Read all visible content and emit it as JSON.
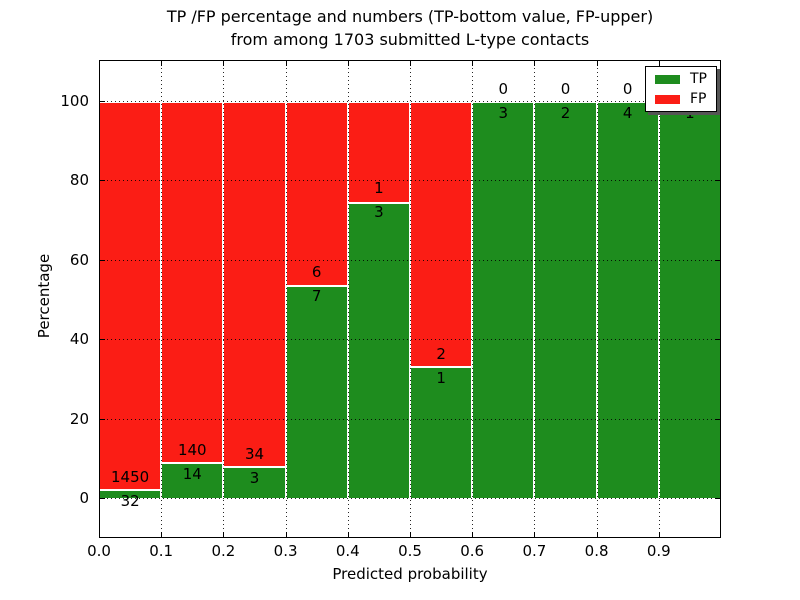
{
  "title_lines": {
    "line1": "TP /FP percentage and numbers (TP-bottom value, FP-upper)",
    "line2": "from among 1703 submitted L-type contacts"
  },
  "chart_data": {
    "type": "bar",
    "stacked": true,
    "normalized_to_percent": true,
    "title": "TP /FP percentage and numbers (TP-bottom value, FP-upper)\nfrom among 1703 submitted L-type contacts",
    "xlabel": "Predicted probability",
    "ylabel": "Percentage",
    "total_contacts": 1703,
    "categories": [
      "0.0-0.1",
      "0.1-0.2",
      "0.2-0.3",
      "0.3-0.4",
      "0.4-0.5",
      "0.5-0.6",
      "0.6-0.7",
      "0.7-0.8",
      "0.8-0.9",
      "0.9-1.0"
    ],
    "x_tick_labels": [
      "0.0",
      "0.1",
      "0.2",
      "0.3",
      "0.4",
      "0.5",
      "0.6",
      "0.7",
      "0.8",
      "0.9"
    ],
    "y_ticks": [
      0,
      20,
      40,
      60,
      80,
      100
    ],
    "ylim": [
      -10.2,
      110.3
    ],
    "xlim": [
      0.0,
      1.0
    ],
    "grid": "dotted",
    "series": [
      {
        "name": "TP",
        "color": "#1e8c1e",
        "counts": [
          32,
          14,
          3,
          7,
          3,
          1,
          3,
          2,
          4,
          1
        ]
      },
      {
        "name": "FP",
        "color": "#fb1d15",
        "counts": [
          1450,
          140,
          34,
          6,
          1,
          2,
          0,
          0,
          0,
          0
        ]
      }
    ],
    "tp_percent": [
      2.16,
      9.09,
      8.11,
      53.85,
      75.0,
      33.33,
      100.0,
      100.0,
      100.0,
      100.0
    ],
    "legend": {
      "position": "upper right",
      "entries": [
        "TP",
        "FP"
      ]
    },
    "bar_edge_color": "#ffffff"
  }
}
